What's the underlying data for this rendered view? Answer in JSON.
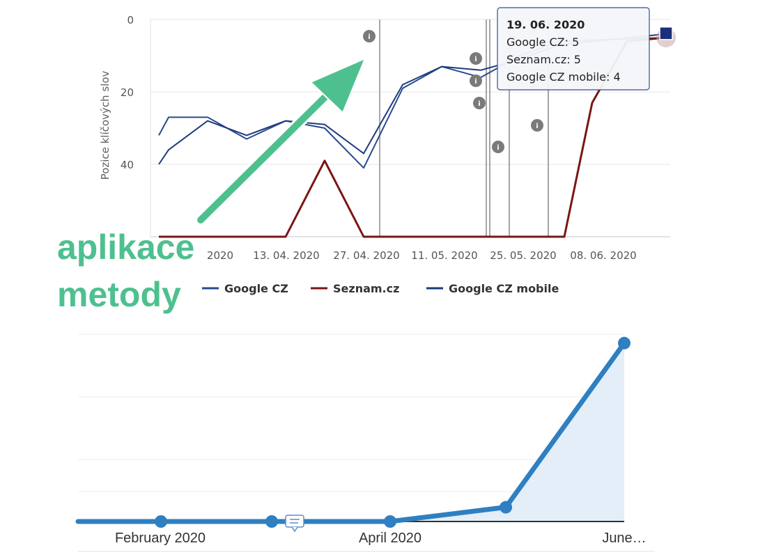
{
  "chart_data": [
    {
      "type": "line",
      "title": "",
      "ylabel": "Pozice klíčových slov",
      "y_reversed": true,
      "ylim": [
        0,
        60
      ],
      "y_ticks": [
        0,
        20,
        40
      ],
      "x_tick_labels": [
        "2020",
        "13. 04. 2020",
        "27. 04. 2020",
        "11. 05. 2020",
        "25. 05. 2020",
        "08. 06. 2020"
      ],
      "grid": true,
      "legend": "bottom",
      "series": [
        {
          "name": "Google CZ",
          "color": "#2b4a8c",
          "values": [
            32,
            27,
            27,
            33,
            28,
            30,
            41,
            19,
            13,
            16,
            10,
            6,
            5
          ]
        },
        {
          "name": "Seznam.cz",
          "color": "#7a1515",
          "values": [
            60,
            60,
            60,
            60,
            60,
            39,
            60,
            60,
            60,
            60,
            60,
            60,
            60,
            60,
            60,
            23,
            6,
            5
          ]
        },
        {
          "name": "Google CZ mobile",
          "color": "#1c3b7d",
          "values": [
            40,
            36,
            28,
            32,
            28,
            29,
            37,
            18,
            13,
            14,
            11,
            7,
            4
          ]
        }
      ],
      "annotation_markers": 6,
      "tooltip": {
        "date": "19. 06. 2020",
        "rows": [
          "Google CZ: 5",
          "Seznam.cz: 5",
          "Google CZ mobile: 4"
        ]
      }
    },
    {
      "type": "area",
      "title": "",
      "x_tick_labels": [
        "February 2020",
        "April 2020",
        "June…"
      ],
      "color": "#2f7fc1",
      "values": [
        0,
        0,
        0,
        0,
        0,
        0.08,
        1.0
      ],
      "ylim": [
        0,
        1.05
      ],
      "grid": true
    }
  ],
  "annotation": {
    "line1": "aplikace",
    "line2": "metody",
    "color": "#4ec08f"
  }
}
